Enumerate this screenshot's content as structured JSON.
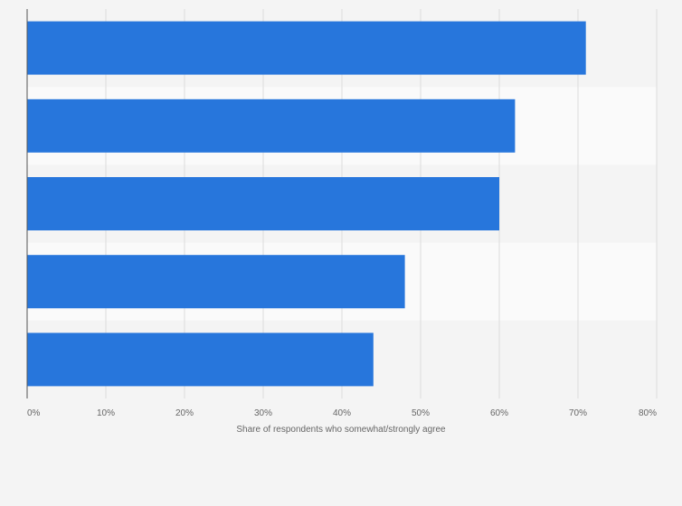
{
  "chart_data": {
    "type": "bar",
    "orientation": "horizontal",
    "categories": [
      "",
      "",
      "",
      "",
      ""
    ],
    "values": [
      71,
      62,
      60,
      48,
      44
    ],
    "xlabel": "Share of respondents who somewhat/strongly agree",
    "ylabel": "",
    "xlim": [
      0,
      80
    ],
    "ticks": [
      0,
      10,
      20,
      30,
      40,
      50,
      60,
      70,
      80
    ],
    "tick_labels": [
      "0%",
      "10%",
      "20%",
      "30%",
      "40%",
      "50%",
      "60%",
      "70%",
      "80%"
    ],
    "grid": true,
    "bar_color": "#2776dc"
  }
}
